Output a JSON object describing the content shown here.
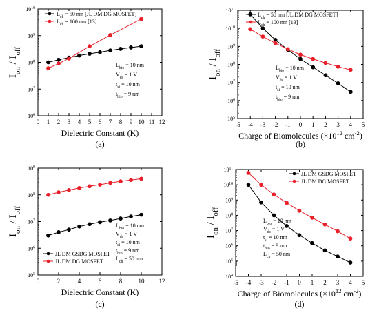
{
  "chart_data": [
    {
      "id": "a",
      "type": "line",
      "caption": "(a)",
      "xlabel": "Dielectric Constant (K)",
      "ylabel_main": "I",
      "ylabel_sub1": "on",
      "ylabel_mid": " / I",
      "ylabel_sub2": "off",
      "xlim": [
        0,
        12
      ],
      "xticks": [
        0,
        1,
        2,
        3,
        4,
        5,
        6,
        7,
        8,
        9,
        10,
        11,
        12
      ],
      "yscale": "log",
      "ylim_exp": [
        6,
        10
      ],
      "yticks_exp": [
        6,
        7,
        8,
        9,
        10
      ],
      "legend": "top-left",
      "series": [
        {
          "name": "L_ch = 50 nm [JL DM DG MOSFET]",
          "name_main": "L",
          "name_sub": "ch",
          "name_rest": " = 50 nm [JL DM DG MOSFET]",
          "color": "#000000",
          "x": [
            1,
            2,
            3,
            4,
            5,
            6,
            7,
            8,
            9,
            10
          ],
          "y": [
            100000000.0,
            125000000.0,
            150000000.0,
            180000000.0,
            210000000.0,
            240000000.0,
            280000000.0,
            320000000.0,
            360000000.0,
            400000000.0
          ]
        },
        {
          "name": "L_ch = 100 nm [13]",
          "name_main": "L",
          "name_sub": "ch",
          "name_rest": " = 100 nm [13]",
          "color": "#e8202a",
          "x": [
            1,
            2,
            3,
            5,
            7,
            10
          ],
          "y": [
            60000000.0,
            90000000.0,
            140000000.0,
            400000000.0,
            1050000000.0,
            4200000000.0
          ]
        }
      ],
      "annotation": [
        {
          "main": "L",
          "sub": "bio",
          "rest": " = 10 nm"
        },
        {
          "main": "V",
          "sub": "ds",
          "rest": " = 1 V"
        },
        {
          "main": "t",
          "sub": "si",
          "rest": " = 10 nm"
        },
        {
          "main": "t",
          "sub": "bio",
          "rest": " = 9 nm"
        }
      ]
    },
    {
      "id": "b",
      "type": "line",
      "caption": "(b)",
      "xlabel": "Charge of Biomolecules (×10",
      "xlabel_sup": "12",
      "xlabel_unit": " cm",
      "xlabel_unit_sup": "-2",
      "xlabel_end": ")",
      "ylabel_main": "I",
      "ylabel_sub1": "on",
      "ylabel_mid": " / I",
      "ylabel_sub2": "off",
      "xlim": [
        -5,
        5
      ],
      "xticks": [
        -5,
        -4,
        -3,
        -2,
        -1,
        0,
        1,
        2,
        3,
        4,
        5
      ],
      "yscale": "log",
      "ylim_exp": [
        5,
        11
      ],
      "yticks_exp": [
        5,
        6,
        7,
        8,
        9,
        10,
        11
      ],
      "legend": "top-right",
      "series": [
        {
          "name": "L_ch = 50 nm [JL DM DG MOSFET]",
          "name_main": "L",
          "name_sub": "ch",
          "name_rest": " = 50 nm [JL DM DG MOSFET]",
          "color": "#000000",
          "x": [
            -4,
            -3,
            -2,
            -1,
            0,
            1,
            2,
            3,
            4
          ],
          "y": [
            60000000000.0,
            10000000000.0,
            2300000000.0,
            650000000.0,
            200000000.0,
            70000000.0,
            25000000.0,
            9000000.0,
            3000000.0
          ]
        },
        {
          "name": "L_ch = 100 nm [13]",
          "name_main": "L",
          "name_sub": "ch",
          "name_rest": " = 100 nm [13]",
          "color": "#e8202a",
          "x": [
            -4,
            -3,
            -2,
            -1,
            0,
            1,
            2,
            3,
            4
          ],
          "y": [
            9000000000.0,
            3500000000.0,
            1500000000.0,
            700000000.0,
            350000000.0,
            200000000.0,
            120000000.0,
            75000000.0,
            50000000.0
          ]
        }
      ],
      "annotation": [
        {
          "main": "L",
          "sub": "bio",
          "rest": " = 10 nm"
        },
        {
          "main": "V",
          "sub": "ds",
          "rest": " = 1 V"
        },
        {
          "main": "t",
          "sub": "si",
          "rest": " = 10 nm"
        },
        {
          "main": "t",
          "sub": "bio",
          "rest": " = 9 nm"
        }
      ]
    },
    {
      "id": "c",
      "type": "line",
      "caption": "(c)",
      "xlabel": "Dielectric Constant (K)",
      "ylabel_main": "I",
      "ylabel_sub1": "on",
      "ylabel_mid": " / I",
      "ylabel_sub2": "off",
      "xlim": [
        0,
        12
      ],
      "xticks": [
        0,
        2,
        4,
        6,
        8,
        10,
        12
      ],
      "yscale": "log",
      "ylim_exp": [
        5,
        9
      ],
      "yticks_exp": [
        5,
        6,
        7,
        8,
        9
      ],
      "legend": "bottom-left",
      "series": [
        {
          "name": "JL DM GSDG MOSFET",
          "name_main": "JL DM GSDG MOSFET",
          "name_sub": "",
          "name_rest": "",
          "color": "#000000",
          "x": [
            1,
            2,
            3,
            4,
            5,
            6,
            7,
            8,
            9,
            10
          ],
          "y": [
            3000000.0,
            4000000.0,
            5000000.0,
            6500000.0,
            8000000.0,
            9500000.0,
            11000000.0,
            13000000.0,
            15500000.0,
            18000000.0
          ]
        },
        {
          "name": "JL DM DG MOSFET",
          "name_main": "JL DM DG MOSFET",
          "name_sub": "",
          "name_rest": "",
          "color": "#e8202a",
          "x": [
            1,
            2,
            3,
            4,
            5,
            6,
            7,
            8,
            9,
            10
          ],
          "y": [
            100000000.0,
            125000000.0,
            150000000.0,
            180000000.0,
            210000000.0,
            240000000.0,
            280000000.0,
            320000000.0,
            360000000.0,
            400000000.0
          ]
        }
      ],
      "annotation": [
        {
          "main": "L",
          "sub": "bio",
          "rest": " = 10 nm"
        },
        {
          "main": "V",
          "sub": "ds",
          "rest": " = 1 V"
        },
        {
          "main": "t",
          "sub": "si",
          "rest": " = 10 nm"
        },
        {
          "main": "t",
          "sub": "bio",
          "rest": " = 9 nm"
        },
        {
          "main": "L",
          "sub": "ch",
          "rest": " = 50 nm"
        }
      ]
    },
    {
      "id": "d",
      "type": "line",
      "caption": "(d)",
      "xlabel": "Charge of Biomolecules (×10",
      "xlabel_sup": "12",
      "xlabel_unit": " cm",
      "xlabel_unit_sup": "-2",
      "xlabel_end": ")",
      "ylabel_main": "I",
      "ylabel_sub1": "on",
      "ylabel_mid": " / I",
      "ylabel_sub2": "off",
      "xlim": [
        -5,
        5
      ],
      "xticks": [
        -5,
        -4,
        -3,
        -2,
        -1,
        0,
        1,
        2,
        3,
        4,
        5
      ],
      "yscale": "log",
      "ylim_exp": [
        4,
        11
      ],
      "yticks_exp": [
        4,
        5,
        6,
        7,
        8,
        9,
        10,
        11
      ],
      "legend": "top-right",
      "series": [
        {
          "name": "JL DM GSDG MOSFET",
          "name_main": "JL DM GSDG MOSFET",
          "name_sub": "",
          "name_rest": "",
          "color": "#000000",
          "x": [
            -4,
            -3,
            -2,
            -1,
            0,
            1,
            2,
            3,
            4
          ],
          "y": [
            10000000000.0,
            700000000.0,
            100000000.0,
            20000000.0,
            5000000.0,
            1500000.0,
            500000.0,
            200000.0,
            80000.0
          ]
        },
        {
          "name": "JL DM DG MOSFET",
          "name_main": "JL DM DG MOSFET",
          "name_sub": "",
          "name_rest": "",
          "color": "#e8202a",
          "x": [
            -4,
            -3,
            -2,
            -1,
            0,
            1,
            2,
            3,
            4
          ],
          "y": [
            60000000000.0,
            10000000000.0,
            2300000000.0,
            650000000.0,
            200000000.0,
            70000000.0,
            25000000.0,
            9000000.0,
            3000000.0
          ]
        }
      ],
      "annotation": [
        {
          "main": "L",
          "sub": "bio",
          "rest": " = 10 nm"
        },
        {
          "main": "V",
          "sub": "ds",
          "rest": " = 1 V"
        },
        {
          "main": "t",
          "sub": "si",
          "rest": " = 10 nm"
        },
        {
          "main": "t",
          "sub": "bio",
          "rest": " = 9 nm"
        },
        {
          "main": "L",
          "sub": "ch",
          "rest": " = 50 nm"
        }
      ]
    }
  ]
}
